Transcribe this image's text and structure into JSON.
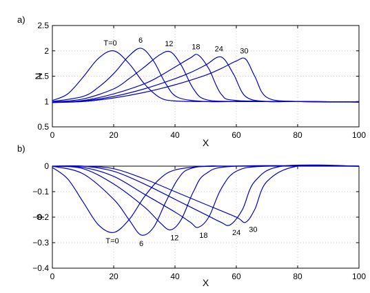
{
  "colors": {
    "line": "#0000cc",
    "axis": "#000000",
    "grid": "#c8c8c8"
  },
  "chart_data": [
    {
      "type": "line",
      "panel_label": "a)",
      "xlabel": "X",
      "ylabel": "N",
      "xlim": [
        0,
        100
      ],
      "ylim": [
        0.5,
        2.5
      ],
      "xticks": [
        "0",
        "20",
        "40",
        "60",
        "80",
        "100"
      ],
      "yticks": [
        "0.5",
        "1",
        "1.5",
        "2",
        "2.5"
      ],
      "grid": true,
      "annotations": [
        "T=0",
        "6",
        "12",
        "18",
        "24",
        "30"
      ],
      "series": [
        {
          "label": "T=0",
          "x": [
            0,
            5,
            10,
            15,
            20,
            25,
            30,
            35,
            40,
            50,
            60,
            80,
            100
          ],
          "y": [
            1.02,
            1.15,
            1.48,
            1.85,
            2.0,
            1.75,
            1.35,
            1.08,
            1.01,
            1.0,
            1.0,
            1.0,
            0.99
          ]
        },
        {
          "label": "6",
          "x": [
            0,
            10,
            15,
            20,
            25,
            29,
            33,
            37,
            41,
            50,
            60,
            80,
            100
          ],
          "y": [
            1.0,
            1.1,
            1.28,
            1.55,
            1.9,
            2.05,
            1.8,
            1.35,
            1.08,
            1.0,
            1.0,
            1.0,
            0.99
          ]
        },
        {
          "label": "12",
          "x": [
            0,
            10,
            20,
            25,
            30,
            35,
            38.5,
            42,
            46,
            50,
            60,
            80,
            100
          ],
          "y": [
            0.99,
            1.05,
            1.25,
            1.45,
            1.68,
            1.92,
            1.98,
            1.72,
            1.25,
            1.04,
            1.0,
            1.0,
            0.99
          ]
        },
        {
          "label": "18",
          "x": [
            0,
            10,
            20,
            30,
            35,
            40,
            45,
            47.5,
            51,
            55,
            60,
            80,
            100
          ],
          "y": [
            0.98,
            1.02,
            1.15,
            1.35,
            1.5,
            1.68,
            1.86,
            1.92,
            1.65,
            1.15,
            1.02,
            1.0,
            0.99
          ]
        },
        {
          "label": "24",
          "x": [
            0,
            10,
            20,
            30,
            40,
            45,
            50,
            55,
            59,
            63,
            70,
            80,
            100
          ],
          "y": [
            0.98,
            1.01,
            1.1,
            1.25,
            1.45,
            1.57,
            1.72,
            1.88,
            1.55,
            1.1,
            1.0,
            1.0,
            0.99
          ]
        },
        {
          "label": "30",
          "x": [
            0,
            10,
            20,
            30,
            40,
            50,
            55,
            60,
            63,
            66,
            70,
            80,
            100
          ],
          "y": [
            0.98,
            1.0,
            1.07,
            1.18,
            1.33,
            1.52,
            1.65,
            1.8,
            1.84,
            1.5,
            1.08,
            1.0,
            0.99
          ]
        }
      ]
    },
    {
      "type": "line",
      "panel_label": "b)",
      "xlabel": "X",
      "ylabel": "φ",
      "xlim": [
        0,
        100
      ],
      "ylim": [
        -0.4,
        0
      ],
      "xticks": [
        "0",
        "20",
        "40",
        "60",
        "80",
        "100"
      ],
      "yticks": [
        "0",
        "−0.1",
        "−0.2",
        "−0.3",
        "−0.4"
      ],
      "grid": true,
      "annotations": [
        "T=0",
        "6",
        "12",
        "18",
        "24",
        "30"
      ],
      "series": [
        {
          "label": "T=0",
          "x": [
            0,
            5,
            10,
            15,
            20,
            25,
            30,
            35,
            40,
            50,
            60,
            100
          ],
          "y": [
            -0.005,
            -0.05,
            -0.14,
            -0.23,
            -0.26,
            -0.21,
            -0.12,
            -0.05,
            -0.015,
            0.0,
            0.0,
            0.0
          ]
        },
        {
          "label": "6",
          "x": [
            0,
            10,
            20,
            25,
            29,
            33,
            37,
            41,
            45,
            55,
            100
          ],
          "y": [
            0.0,
            -0.03,
            -0.13,
            -0.21,
            -0.27,
            -0.24,
            -0.14,
            -0.05,
            -0.01,
            0.0,
            0.0
          ]
        },
        {
          "label": "12",
          "x": [
            0,
            10,
            20,
            30,
            35,
            38.5,
            42,
            46,
            50,
            60,
            100
          ],
          "y": [
            0.0,
            -0.01,
            -0.07,
            -0.16,
            -0.22,
            -0.25,
            -0.21,
            -0.1,
            -0.03,
            0.0,
            0.0
          ]
        },
        {
          "label": "18",
          "x": [
            0,
            10,
            20,
            30,
            40,
            45,
            47.5,
            51,
            55,
            60,
            70,
            100
          ],
          "y": [
            0.0,
            -0.005,
            -0.04,
            -0.11,
            -0.18,
            -0.22,
            -0.24,
            -0.2,
            -0.09,
            -0.02,
            0.0,
            0.0
          ]
        },
        {
          "label": "24",
          "x": [
            0,
            10,
            20,
            30,
            40,
            50,
            55,
            58,
            62,
            66,
            75,
            100
          ],
          "y": [
            0.0,
            0.0,
            -0.02,
            -0.07,
            -0.13,
            -0.19,
            -0.22,
            -0.23,
            -0.17,
            -0.06,
            0.0,
            0.0
          ]
        },
        {
          "label": "30",
          "x": [
            0,
            10,
            20,
            30,
            40,
            50,
            60,
            63,
            66,
            70,
            80,
            100
          ],
          "y": [
            0.0,
            0.0,
            -0.01,
            -0.05,
            -0.1,
            -0.15,
            -0.2,
            -0.22,
            -0.17,
            -0.06,
            0.0,
            0.0
          ]
        }
      ]
    }
  ]
}
